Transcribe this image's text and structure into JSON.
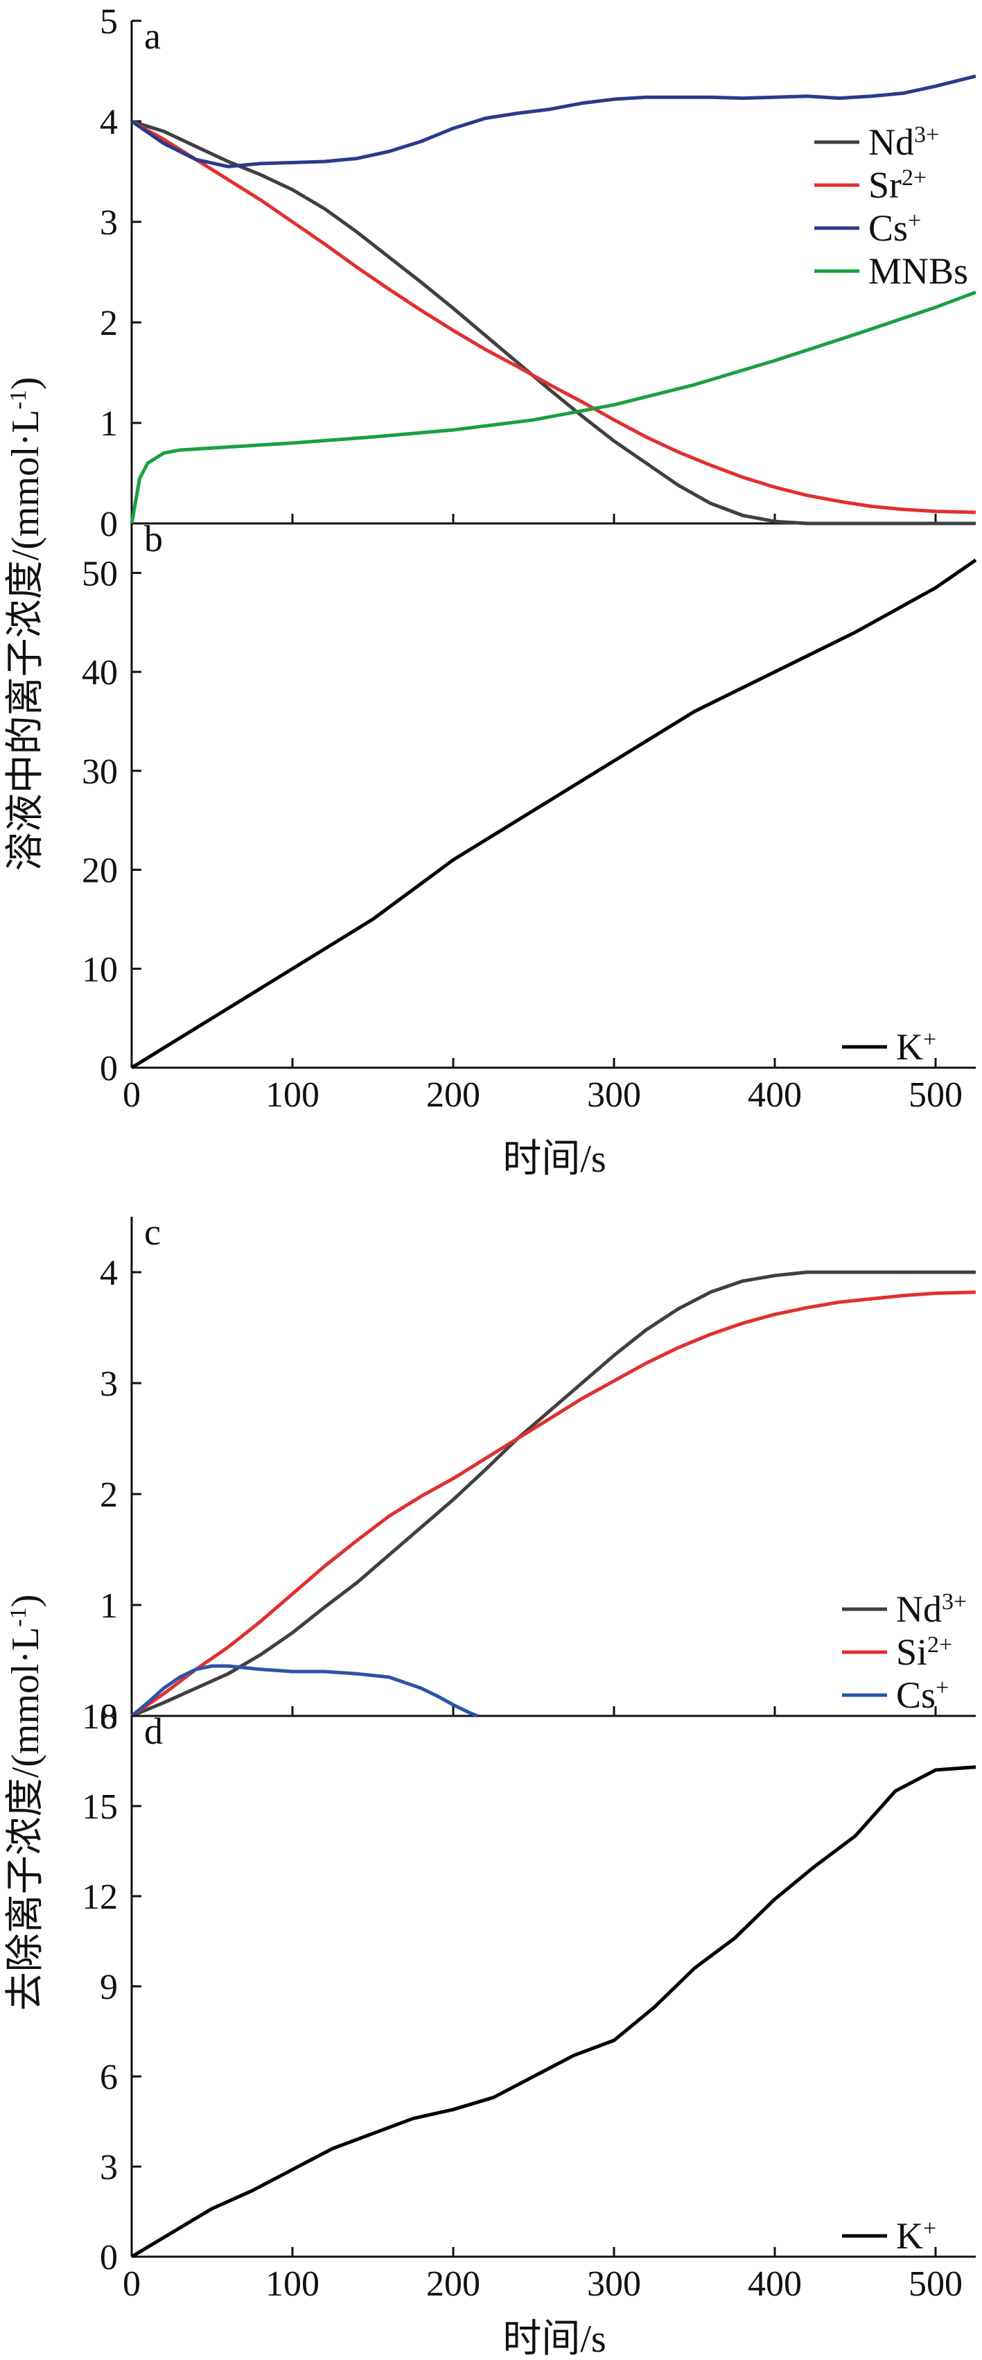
{
  "colors": {
    "nd": "#404040",
    "sr": "#e03030",
    "cs": "#2a3a8c",
    "cs_c": "#2b54a8",
    "mnbs": "#1aa040",
    "k": "#000000"
  },
  "top": {
    "ylabel": "溶液中的离子浓度/(mmol·L",
    "ylabel_sup": "-1",
    "ylabel_end": ")",
    "xlabel": "时间/s"
  },
  "bottom": {
    "ylabel": "去除离子浓度/(mmol·L",
    "ylabel_sup": "-1",
    "ylabel_end": ")",
    "xlabel": "时间/s"
  },
  "chart_data": [
    {
      "panel": "a",
      "type": "line",
      "xlim": [
        0,
        525
      ],
      "ylim": [
        0,
        5
      ],
      "yticks": [
        "0",
        "1",
        "2",
        "3",
        "4",
        "5"
      ],
      "legend_position": "top-right",
      "series": [
        {
          "name": "Nd",
          "sup": "3+",
          "color_key": "nd",
          "x": [
            0,
            20,
            40,
            60,
            80,
            100,
            120,
            140,
            160,
            180,
            200,
            220,
            240,
            260,
            280,
            300,
            320,
            340,
            360,
            380,
            400,
            420,
            440,
            460,
            480,
            500,
            525
          ],
          "y": [
            4.0,
            3.9,
            3.75,
            3.6,
            3.47,
            3.32,
            3.13,
            2.9,
            2.65,
            2.4,
            2.14,
            1.87,
            1.6,
            1.33,
            1.07,
            0.82,
            0.6,
            0.38,
            0.2,
            0.08,
            0.02,
            0.0,
            0.0,
            0.0,
            0.0,
            0.0,
            0.0
          ]
        },
        {
          "name": "Sr",
          "sup": "2+",
          "color_key": "sr",
          "x": [
            0,
            20,
            40,
            60,
            80,
            100,
            120,
            140,
            160,
            180,
            200,
            220,
            240,
            260,
            280,
            300,
            320,
            340,
            360,
            380,
            400,
            420,
            440,
            460,
            480,
            500,
            525
          ],
          "y": [
            4.0,
            3.82,
            3.62,
            3.42,
            3.22,
            3.0,
            2.78,
            2.55,
            2.33,
            2.12,
            1.92,
            1.73,
            1.56,
            1.38,
            1.21,
            1.03,
            0.86,
            0.71,
            0.58,
            0.46,
            0.36,
            0.28,
            0.22,
            0.17,
            0.14,
            0.12,
            0.11
          ]
        },
        {
          "name": "Cs",
          "sup": "+",
          "color_key": "cs",
          "x": [
            0,
            20,
            40,
            60,
            80,
            100,
            120,
            140,
            160,
            180,
            200,
            220,
            240,
            260,
            280,
            300,
            320,
            340,
            360,
            380,
            400,
            420,
            440,
            460,
            480,
            500,
            525
          ],
          "y": [
            4.0,
            3.78,
            3.62,
            3.55,
            3.58,
            3.59,
            3.6,
            3.63,
            3.7,
            3.8,
            3.93,
            4.03,
            4.08,
            4.12,
            4.18,
            4.22,
            4.24,
            4.24,
            4.24,
            4.23,
            4.24,
            4.25,
            4.23,
            4.25,
            4.28,
            4.35,
            4.45
          ]
        },
        {
          "name": "MNBs",
          "sup": "",
          "color_key": "mnbs",
          "x": [
            0,
            5,
            10,
            20,
            30,
            50,
            80,
            100,
            150,
            200,
            250,
            300,
            350,
            400,
            450,
            500,
            525
          ],
          "y": [
            0.0,
            0.45,
            0.6,
            0.7,
            0.73,
            0.75,
            0.78,
            0.8,
            0.86,
            0.93,
            1.03,
            1.18,
            1.38,
            1.62,
            1.88,
            2.15,
            2.3
          ]
        }
      ]
    },
    {
      "panel": "b",
      "type": "line",
      "xlim": [
        0,
        525
      ],
      "ylim": [
        0,
        55
      ],
      "yticks": [
        "0",
        "10",
        "20",
        "30",
        "40",
        "50"
      ],
      "xticks": [
        "0",
        "100",
        "200",
        "300",
        "400",
        "500"
      ],
      "xlabel": "时间/s",
      "legend_position": "bottom-right",
      "series": [
        {
          "name": "K",
          "sup": "+",
          "color_key": "k",
          "x": [
            0,
            50,
            100,
            150,
            200,
            250,
            300,
            350,
            400,
            450,
            500,
            525
          ],
          "y": [
            0,
            5,
            10,
            15,
            21,
            26,
            31,
            36,
            40,
            44,
            48.5,
            51.3
          ]
        }
      ]
    },
    {
      "panel": "c",
      "type": "line",
      "xlim": [
        0,
        525
      ],
      "ylim": [
        0,
        4.5
      ],
      "yticks": [
        "0",
        "1",
        "2",
        "3",
        "4"
      ],
      "legend_position": "bottom-right",
      "series": [
        {
          "name": "Nd",
          "sup": "3+",
          "color_key": "nd",
          "x": [
            0,
            20,
            40,
            60,
            80,
            100,
            120,
            140,
            160,
            180,
            200,
            220,
            240,
            260,
            280,
            300,
            320,
            340,
            360,
            380,
            400,
            420,
            440,
            460,
            480,
            500,
            525
          ],
          "y": [
            0.0,
            0.12,
            0.25,
            0.38,
            0.55,
            0.75,
            0.98,
            1.2,
            1.45,
            1.7,
            1.95,
            2.22,
            2.5,
            2.75,
            3.0,
            3.25,
            3.48,
            3.67,
            3.82,
            3.92,
            3.97,
            4.0,
            4.0,
            4.0,
            4.0,
            4.0,
            4.0
          ]
        },
        {
          "name": "Si",
          "sup": "2+",
          "color_key": "sr",
          "x": [
            0,
            20,
            40,
            60,
            80,
            100,
            120,
            140,
            160,
            180,
            200,
            220,
            240,
            260,
            280,
            300,
            320,
            340,
            360,
            380,
            400,
            420,
            440,
            460,
            480,
            500,
            525
          ],
          "y": [
            0.0,
            0.2,
            0.42,
            0.62,
            0.85,
            1.1,
            1.35,
            1.58,
            1.8,
            1.98,
            2.14,
            2.32,
            2.5,
            2.68,
            2.86,
            3.02,
            3.18,
            3.32,
            3.44,
            3.54,
            3.62,
            3.68,
            3.73,
            3.76,
            3.79,
            3.81,
            3.82
          ]
        },
        {
          "name": "Cs",
          "sup": "+",
          "color_key": "cs_c",
          "x": [
            0,
            10,
            20,
            30,
            40,
            50,
            60,
            80,
            100,
            120,
            140,
            160,
            180,
            190,
            200,
            210,
            215
          ],
          "y": [
            0.0,
            0.12,
            0.25,
            0.35,
            0.42,
            0.45,
            0.45,
            0.42,
            0.4,
            0.4,
            0.38,
            0.35,
            0.25,
            0.18,
            0.1,
            0.03,
            0.0
          ]
        }
      ]
    },
    {
      "panel": "d",
      "type": "line",
      "xlim": [
        0,
        525
      ],
      "ylim": [
        0,
        18
      ],
      "yticks": [
        "0",
        "3",
        "6",
        "9",
        "12",
        "15",
        "18"
      ],
      "xticks": [
        "0",
        "100",
        "200",
        "300",
        "400",
        "500"
      ],
      "xlabel": "时间/s",
      "legend_position": "bottom-right",
      "series": [
        {
          "name": "K",
          "sup": "+",
          "color_key": "k",
          "x": [
            0,
            25,
            50,
            75,
            100,
            125,
            150,
            175,
            200,
            225,
            250,
            275,
            300,
            325,
            350,
            375,
            400,
            425,
            450,
            475,
            500,
            525
          ],
          "y": [
            0,
            0.8,
            1.6,
            2.2,
            2.9,
            3.6,
            4.1,
            4.6,
            4.9,
            5.3,
            6.0,
            6.7,
            7.2,
            8.3,
            9.6,
            10.6,
            11.9,
            13.0,
            14.0,
            15.5,
            16.2,
            16.3
          ]
        }
      ]
    }
  ]
}
